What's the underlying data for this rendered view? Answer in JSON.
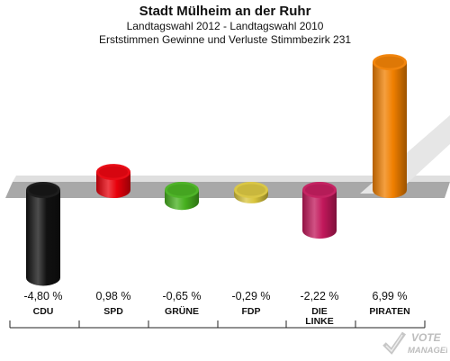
{
  "header": {
    "title": "Stadt Mülheim an der Ruhr",
    "subtitle1": "Landtagswahl 2012 - Landtagswahl 2010",
    "subtitle2": "Erststimmen Gewinne und Verluste Stimmbezirk 231"
  },
  "chart_data": {
    "type": "bar",
    "title": "Stadt Mülheim an der Ruhr",
    "subtitle": "Landtagswahl 2012 - Landtagswahl 2010 / Erststimmen Gewinne und Verluste Stimmbezirk 231",
    "categories": [
      "CDU",
      "SPD",
      "GRÜNE",
      "FDP",
      "DIE LINKE",
      "PIRATEN"
    ],
    "category_lines": [
      [
        "CDU"
      ],
      [
        "SPD"
      ],
      [
        "GRÜNE"
      ],
      [
        "FDP"
      ],
      [
        "DIE",
        "LINKE"
      ],
      [
        "PIRATEN"
      ]
    ],
    "values": [
      -4.8,
      0.98,
      -0.65,
      -0.29,
      -2.22,
      6.99
    ],
    "value_labels": [
      "-4,80 %",
      "0,98 %",
      "-0,65 %",
      "-0,29 %",
      "-2,22 %",
      "6,99 %"
    ],
    "colors": [
      "#111111",
      "#e8000b",
      "#46b01e",
      "#d8c43c",
      "#c2185b",
      "#f07f00"
    ],
    "ylim": [
      -4.8,
      6.99
    ],
    "grid": false,
    "legend": "none"
  },
  "logo": {
    "text_top": "VOTE",
    "text_bottom": "MANAGER"
  }
}
